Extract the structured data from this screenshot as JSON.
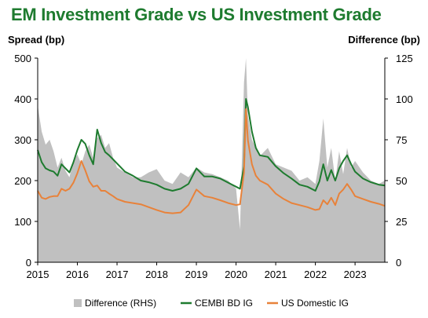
{
  "chart_data": {
    "type": "line",
    "title": "EM Investment Grade vs US Investment Grade",
    "ylabel_left": "Spread (bp)",
    "ylabel_right": "Difference (bp)",
    "ylim_left": [
      0,
      500
    ],
    "ylim_right": [
      0,
      125
    ],
    "yticks_left": [
      "0",
      "100",
      "200",
      "300",
      "400",
      "500"
    ],
    "yticks_right": [
      "0",
      "25",
      "50",
      "75",
      "100",
      "125"
    ],
    "x_range": [
      2015.0,
      2023.75
    ],
    "xticks": [
      "2015",
      "2016",
      "2017",
      "2018",
      "2019",
      "2020",
      "2021",
      "2022",
      "2023"
    ],
    "legend_position": "bottom",
    "colors": {
      "difference": "#c0c0c0",
      "cembi": "#1e7b2f",
      "usig": "#e8823a"
    },
    "series": [
      {
        "name": "Difference (RHS)",
        "axis": "right",
        "style": "area",
        "x": [
          2015.0,
          2015.1,
          2015.2,
          2015.3,
          2015.4,
          2015.5,
          2015.6,
          2015.7,
          2015.8,
          2015.9,
          2016.0,
          2016.1,
          2016.2,
          2016.3,
          2016.4,
          2016.5,
          2016.6,
          2016.7,
          2016.8,
          2016.9,
          2017.0,
          2017.2,
          2017.4,
          2017.6,
          2017.8,
          2018.0,
          2018.2,
          2018.4,
          2018.6,
          2018.8,
          2019.0,
          2019.2,
          2019.4,
          2019.6,
          2019.8,
          2020.0,
          2020.1,
          2020.2,
          2020.25,
          2020.3,
          2020.4,
          2020.5,
          2020.6,
          2020.8,
          2021.0,
          2021.2,
          2021.4,
          2021.6,
          2021.8,
          2022.0,
          2022.1,
          2022.2,
          2022.3,
          2022.4,
          2022.5,
          2022.6,
          2022.7,
          2022.8,
          2022.9,
          2023.0,
          2023.2,
          2023.4,
          2023.6,
          2023.75
        ],
        "values": [
          96,
          80,
          72,
          75,
          68,
          58,
          64,
          56,
          52,
          62,
          66,
          60,
          68,
          72,
          64,
          76,
          78,
          70,
          73,
          64,
          58,
          55,
          52,
          52,
          55,
          57,
          50,
          48,
          55,
          52,
          58,
          55,
          54,
          52,
          50,
          45,
          20,
          110,
          125,
          90,
          75,
          70,
          65,
          70,
          60,
          58,
          56,
          50,
          52,
          48,
          62,
          88,
          58,
          70,
          50,
          68,
          54,
          70,
          58,
          62,
          55,
          50,
          48,
          50
        ]
      },
      {
        "name": "CEMBI BD IG",
        "axis": "left",
        "style": "line",
        "x": [
          2015.0,
          2015.1,
          2015.2,
          2015.3,
          2015.4,
          2015.5,
          2015.6,
          2015.7,
          2015.8,
          2015.9,
          2016.0,
          2016.1,
          2016.2,
          2016.3,
          2016.4,
          2016.5,
          2016.6,
          2016.7,
          2016.8,
          2016.9,
          2017.0,
          2017.2,
          2017.4,
          2017.6,
          2017.8,
          2018.0,
          2018.2,
          2018.4,
          2018.6,
          2018.8,
          2019.0,
          2019.2,
          2019.4,
          2019.6,
          2019.8,
          2020.0,
          2020.1,
          2020.2,
          2020.25,
          2020.3,
          2020.4,
          2020.5,
          2020.6,
          2020.8,
          2021.0,
          2021.2,
          2021.4,
          2021.6,
          2021.8,
          2022.0,
          2022.1,
          2022.2,
          2022.3,
          2022.4,
          2022.5,
          2022.6,
          2022.7,
          2022.8,
          2022.9,
          2023.0,
          2023.2,
          2023.4,
          2023.6,
          2023.75
        ],
        "values": [
          275,
          245,
          230,
          225,
          222,
          212,
          240,
          230,
          220,
          245,
          275,
          300,
          290,
          262,
          240,
          325,
          292,
          270,
          262,
          252,
          242,
          222,
          212,
          200,
          196,
          190,
          180,
          175,
          180,
          192,
          230,
          210,
          210,
          205,
          195,
          185,
          180,
          235,
          400,
          380,
          320,
          280,
          262,
          258,
          235,
          218,
          205,
          190,
          185,
          175,
          198,
          240,
          200,
          226,
          200,
          230,
          248,
          262,
          240,
          222,
          205,
          196,
          190,
          188
        ]
      },
      {
        "name": "US Domestic IG",
        "axis": "left",
        "style": "line",
        "x": [
          2015.0,
          2015.1,
          2015.2,
          2015.3,
          2015.4,
          2015.5,
          2015.6,
          2015.7,
          2015.8,
          2015.9,
          2016.0,
          2016.1,
          2016.2,
          2016.3,
          2016.4,
          2016.5,
          2016.6,
          2016.7,
          2016.8,
          2016.9,
          2017.0,
          2017.2,
          2017.4,
          2017.6,
          2017.8,
          2018.0,
          2018.2,
          2018.4,
          2018.6,
          2018.8,
          2019.0,
          2019.2,
          2019.4,
          2019.6,
          2019.8,
          2020.0,
          2020.1,
          2020.2,
          2020.25,
          2020.3,
          2020.4,
          2020.5,
          2020.6,
          2020.8,
          2021.0,
          2021.2,
          2021.4,
          2021.6,
          2021.8,
          2022.0,
          2022.1,
          2022.2,
          2022.3,
          2022.4,
          2022.5,
          2022.6,
          2022.7,
          2022.8,
          2022.9,
          2023.0,
          2023.2,
          2023.4,
          2023.6,
          2023.75
        ],
        "values": [
          175,
          158,
          155,
          160,
          162,
          162,
          180,
          175,
          180,
          195,
          218,
          248,
          225,
          198,
          185,
          188,
          175,
          175,
          168,
          162,
          155,
          148,
          145,
          142,
          135,
          128,
          122,
          120,
          122,
          140,
          178,
          162,
          158,
          152,
          145,
          140,
          142,
          220,
          375,
          298,
          240,
          212,
          200,
          190,
          168,
          155,
          145,
          140,
          135,
          128,
          130,
          152,
          142,
          158,
          140,
          168,
          178,
          192,
          178,
          162,
          155,
          148,
          143,
          138
        ]
      }
    ]
  }
}
